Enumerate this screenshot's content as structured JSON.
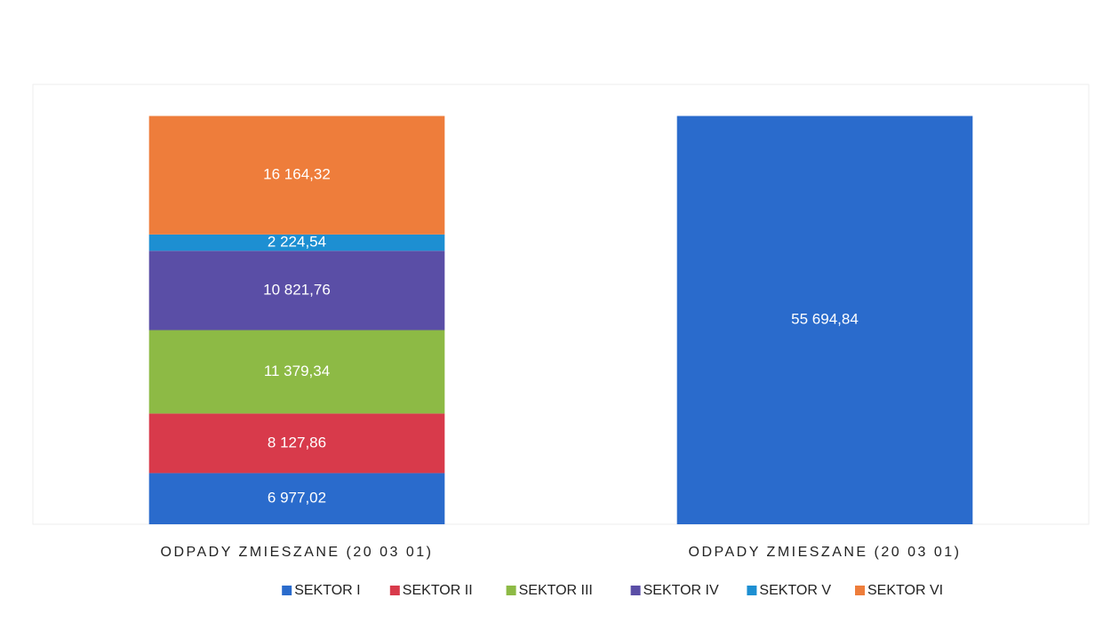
{
  "chart_data": {
    "type": "stacked_bar",
    "categories": [
      "ODPADY ZMIESZANE (20 03 01)",
      "ODPADY ZMIESZANE (20 03 01)"
    ],
    "series": [
      {
        "name": "SEKTOR I",
        "color": "#2a6bcc",
        "values": [
          6977.02,
          55694.84
        ],
        "value_labels": [
          "6 977,02",
          "55 694,84"
        ]
      },
      {
        "name": "SEKTOR II",
        "color": "#d83a4b",
        "values": [
          8127.86,
          null
        ],
        "value_labels": [
          "8 127,86",
          null
        ]
      },
      {
        "name": "SEKTOR III",
        "color": "#8dba45",
        "values": [
          11379.34,
          null
        ],
        "value_labels": [
          "11 379,34",
          null
        ]
      },
      {
        "name": "SEKTOR IV",
        "color": "#5a4ea6",
        "values": [
          10821.76,
          null
        ],
        "value_labels": [
          "10 821,76",
          null
        ]
      },
      {
        "name": "SEKTOR V",
        "color": "#1d8fd2",
        "values": [
          2224.54,
          null
        ],
        "value_labels": [
          "2 224,54",
          null
        ]
      },
      {
        "name": "SEKTOR VI",
        "color": "#ee7d3b",
        "values": [
          16164.32,
          null
        ],
        "value_labels": [
          "16 164,32",
          null
        ]
      }
    ],
    "ylim": [
      0,
      60000
    ],
    "legend": "bottom"
  }
}
